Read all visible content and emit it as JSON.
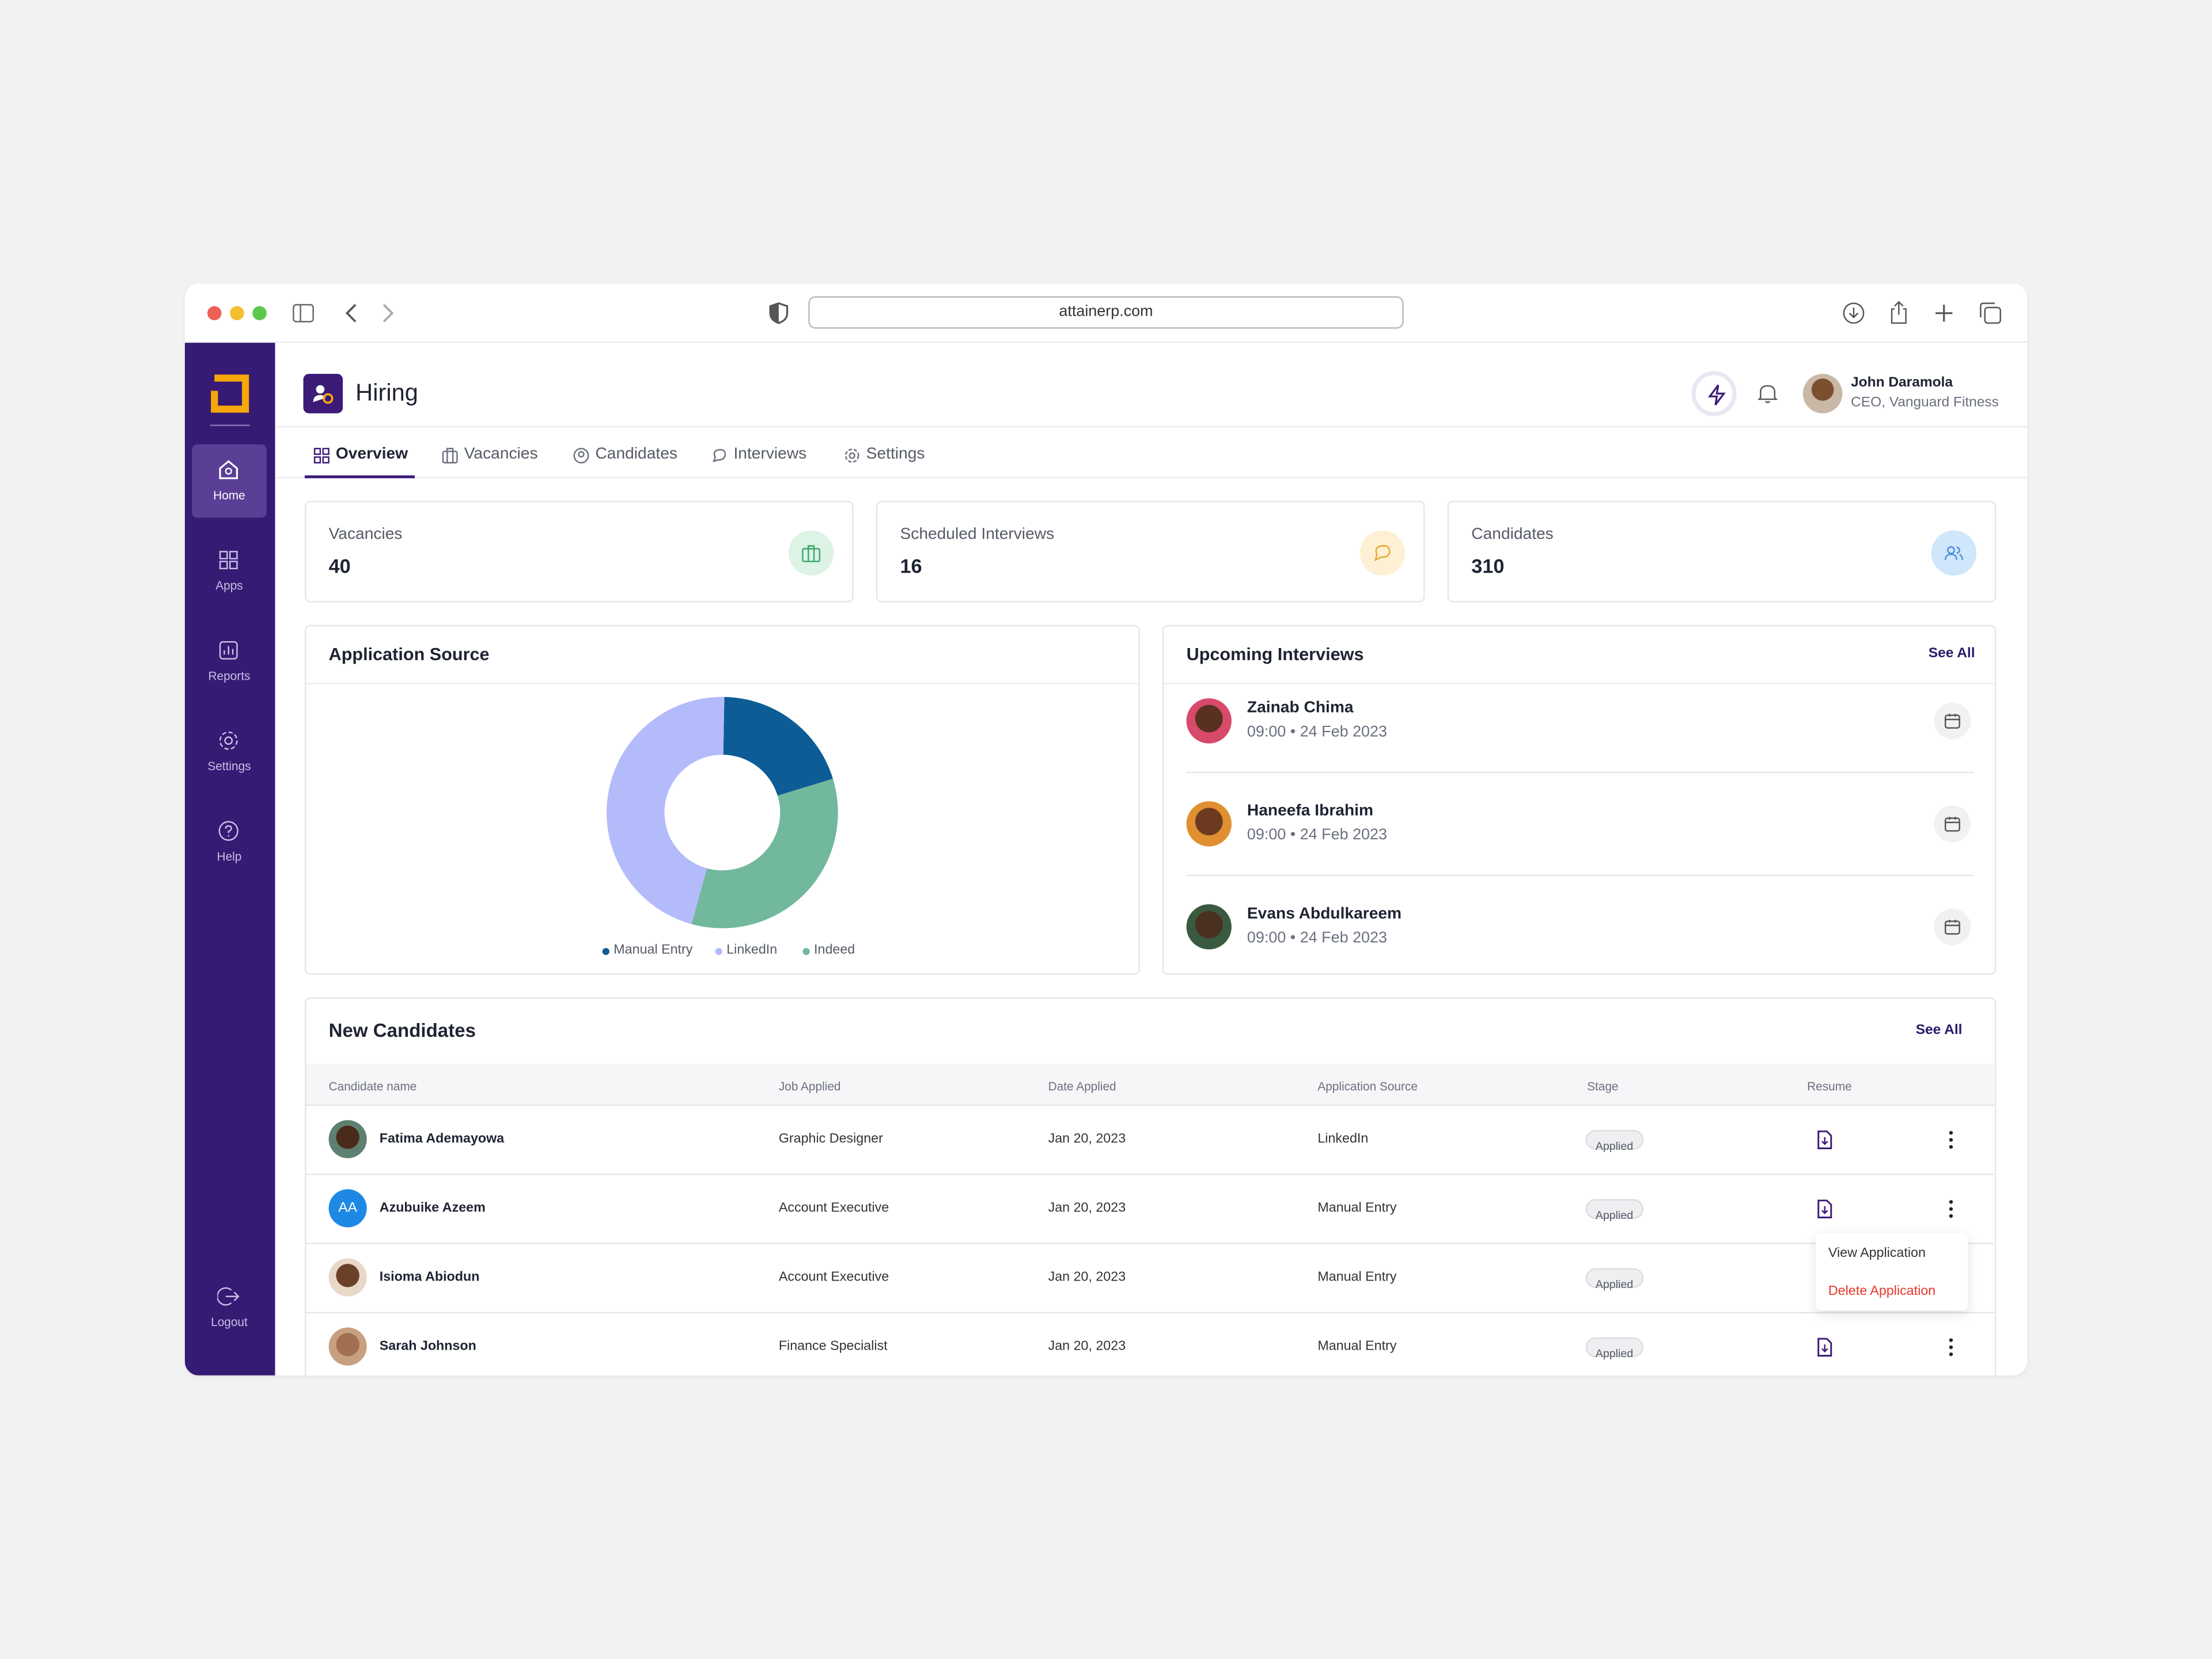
{
  "browser": {
    "url": "attainerp.com"
  },
  "sidebar": {
    "items": [
      "Home",
      "Apps",
      "Reports",
      "Settings",
      "Help"
    ],
    "logout": "Logout"
  },
  "header": {
    "title": "Hiring",
    "user_name": "John Daramola",
    "user_role": "CEO, Vanguard Fitness"
  },
  "tabs": [
    "Overview",
    "Vacancies",
    "Candidates",
    "Interviews",
    "Settings"
  ],
  "stats": [
    {
      "label": "Vacancies",
      "value": 40
    },
    {
      "label": "Scheduled Interviews",
      "value": 16
    },
    {
      "label": "Candidates",
      "value": 310
    }
  ],
  "chart_data": {
    "type": "pie",
    "title": "Application Source",
    "categories": [
      "Manual Entry",
      "LinkedIn",
      "Indeed"
    ],
    "values": [
      20,
      46,
      34
    ],
    "colors": [
      "#0e5c96",
      "#b3bbfa",
      "#72b89d"
    ]
  },
  "interviews": {
    "title": "Upcoming Interviews",
    "see_all": "See All",
    "items": [
      {
        "name": "Zainab Chima",
        "time": "09:00 • 24 Feb 2023"
      },
      {
        "name": "Haneefa Ibrahim",
        "time": "09:00 • 24 Feb 2023"
      },
      {
        "name": "Evans Abdulkareem",
        "time": "09:00 • 24 Feb 2023"
      }
    ]
  },
  "candidates": {
    "title": "New Candidates",
    "see_all": "See All",
    "columns": [
      "Candidate name",
      "Job Applied",
      "Date Applied",
      "Application Source",
      "Stage",
      "Resume"
    ],
    "rows": [
      {
        "name": "Fatima Ademayowa",
        "job": "Graphic Designer",
        "date": "Jan 20, 2023",
        "source": "LinkedIn",
        "stage": "Applied"
      },
      {
        "initials": "AA",
        "name": "Azubuike Azeem",
        "job": "Account Executive",
        "date": "Jan 20, 2023",
        "source": "Manual Entry",
        "stage": "Applied"
      },
      {
        "name": "Isioma Abiodun",
        "job": "Account Executive",
        "date": "Jan 20, 2023",
        "source": "Manual Entry",
        "stage": "Applied"
      },
      {
        "name": "Sarah Johnson",
        "job": "Finance Specialist",
        "date": "Jan 20, 2023",
        "source": "Manual Entry",
        "stage": "Applied"
      }
    ]
  },
  "menu": [
    "View Application",
    "Delete Application"
  ]
}
